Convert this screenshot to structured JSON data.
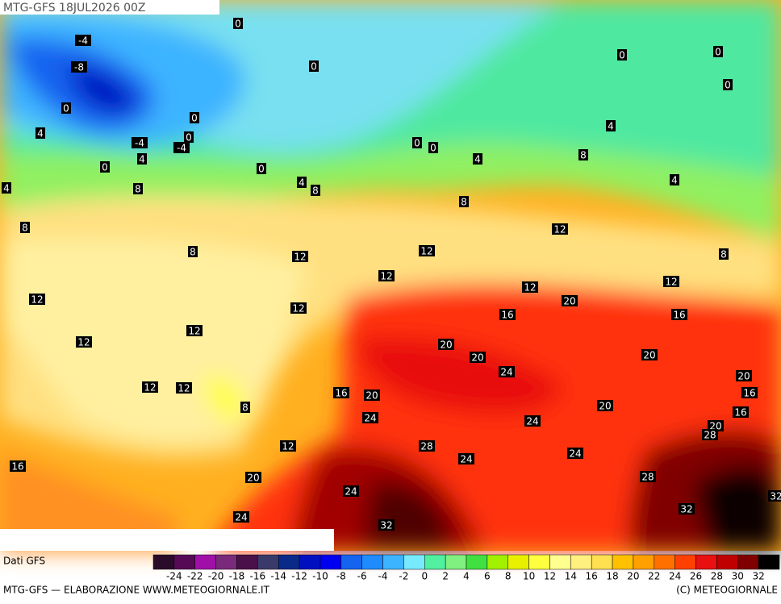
{
  "header": {
    "title": "MTG-GFS 18JUL2026 00Z"
  },
  "contour_labels": [
    0,
    -4,
    -8,
    0,
    0,
    0,
    0,
    0,
    0,
    4,
    -4,
    -4,
    0,
    0,
    0,
    4,
    4,
    0,
    0,
    4,
    8,
    4,
    4,
    8,
    8,
    4,
    8,
    8,
    12,
    8,
    12,
    12,
    8,
    12,
    12,
    12,
    12,
    12,
    20,
    16,
    16,
    12,
    12,
    20,
    20,
    20,
    24,
    20,
    12,
    12,
    16,
    20,
    16,
    8,
    20,
    16,
    24,
    24,
    20,
    28,
    12,
    28,
    24,
    24,
    16,
    20,
    28,
    32,
    24,
    32,
    24,
    32
  ],
  "legend": {
    "source": "Dati GFS",
    "colors": [
      "#2a0b2a",
      "#560a56",
      "#a010a8",
      "#7a2a7a",
      "#4a104a",
      "#3a3a6a",
      "#0a2a8a",
      "#0010c0",
      "#0000f0",
      "#1464f0",
      "#1e8cff",
      "#3cb4ff",
      "#78eaff",
      "#50f0a0",
      "#80f080",
      "#40e040",
      "#a0f000",
      "#e8f000",
      "#ffff40",
      "#ffff90",
      "#fff080",
      "#ffe050",
      "#ffc000",
      "#ffa000",
      "#ff7000",
      "#ff4000",
      "#e81010",
      "#c00000",
      "#800000",
      "#000000"
    ],
    "ticks": [
      -24,
      -22,
      -20,
      -18,
      -16,
      -14,
      -12,
      -10,
      -8,
      -6,
      -4,
      -2,
      0,
      2,
      4,
      6,
      8,
      10,
      12,
      14,
      16,
      18,
      20,
      22,
      24,
      26,
      28,
      30,
      32
    ]
  },
  "footer": {
    "credit": "MTG-GFS — ELABORAZIONE WWW.METEOGIORNALE.IT",
    "copyright": "(C) METEOGIORNALE"
  }
}
